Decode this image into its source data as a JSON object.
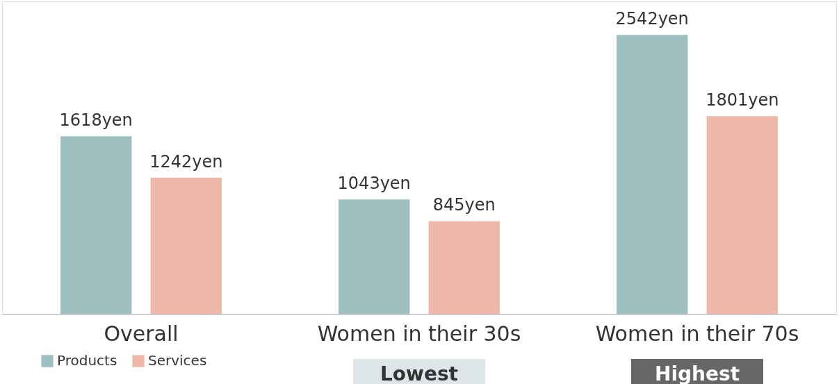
{
  "chart_data": {
    "type": "bar",
    "categories": [
      "Overall",
      "Women in their 30s",
      "Women in their 70s"
    ],
    "series": [
      {
        "name": "Products",
        "color": "#9dbfbf",
        "values": [
          1618,
          1043,
          2542
        ],
        "value_labels": [
          "1618yen",
          "1043yen",
          "2542yen"
        ]
      },
      {
        "name": "Services",
        "color": "#f0b8ab",
        "values": [
          1242,
          845,
          1801
        ],
        "value_labels": [
          "1242yen",
          "845yen",
          "1801yen"
        ]
      }
    ],
    "annotations": [
      "Lowest",
      "Highest"
    ],
    "legend": "bottom left",
    "grid": false
  }
}
